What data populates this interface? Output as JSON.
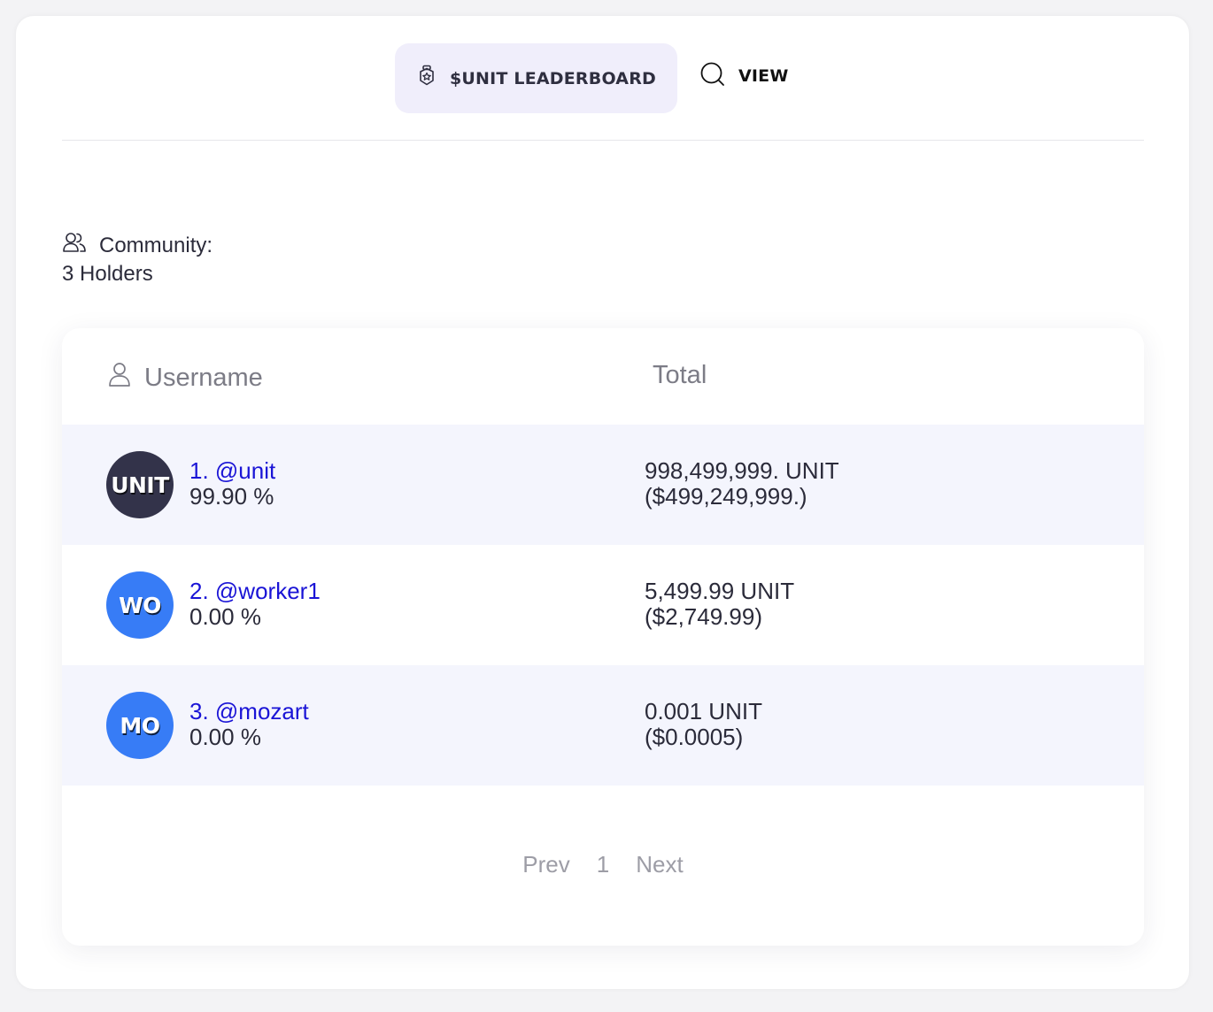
{
  "tabs": {
    "leaderboard_label": "$UNIT LEADERBOARD",
    "view_label": "VIEW"
  },
  "community": {
    "label": "Community:",
    "holders": "3 Holders"
  },
  "table": {
    "headers": {
      "username": "Username",
      "total": "Total"
    },
    "rows": [
      {
        "avatar": "UNIT",
        "avatar_color": "#33334a",
        "username": "1. @unit",
        "percent": "99.90 %",
        "amount": "998,499,999. UNIT",
        "usd": "($499,249,999.)"
      },
      {
        "avatar": "WO",
        "avatar_color": "#377cf6",
        "username": "2. @worker1",
        "percent": "0.00 %",
        "amount": "5,499.99 UNIT",
        "usd": "($2,749.99)"
      },
      {
        "avatar": "MO",
        "avatar_color": "#377cf6",
        "username": "3. @mozart",
        "percent": "0.00 %",
        "amount": "0.001 UNIT",
        "usd": "($0.0005)"
      }
    ]
  },
  "pagination": {
    "prev": "Prev",
    "page": "1",
    "next": "Next"
  },
  "icons": {
    "leaderboard_tab": "badge-icon",
    "view_tab": "search-icon",
    "community": "users-icon",
    "username_header": "user-icon"
  },
  "colors": {
    "link": "#1a14d6",
    "active_tab_bg": "#f0eefb",
    "alt_row_bg": "#f4f5fd"
  }
}
